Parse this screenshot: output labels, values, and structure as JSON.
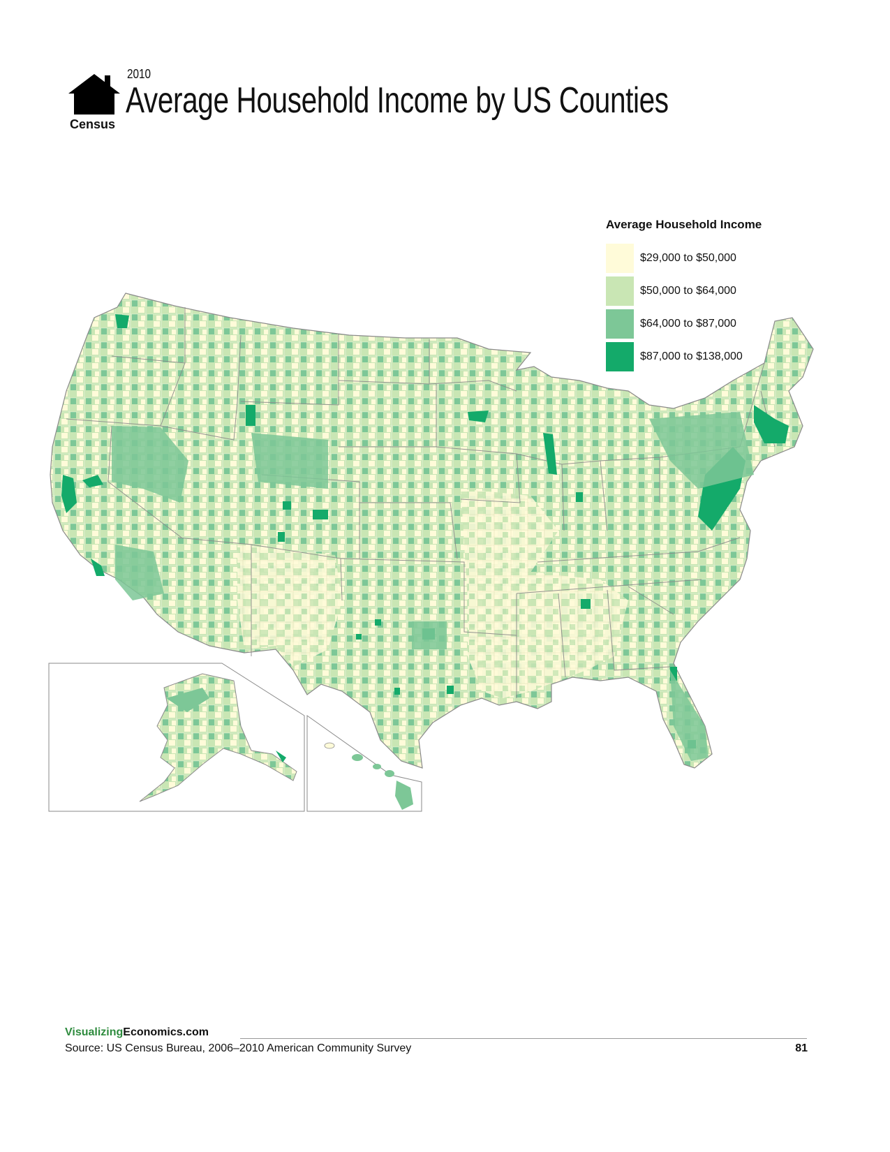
{
  "header": {
    "logo_text": "Census",
    "year": "2010",
    "title": "Average Household Income by US Counties"
  },
  "legend": {
    "title": "Average Household Income",
    "items": [
      {
        "label": "$29,000 to $50,000",
        "color": "#fffbd9"
      },
      {
        "label": "$50,000 to $64,000",
        "color": "#c9e6b4"
      },
      {
        "label": "$64,000 to $87,000",
        "color": "#7dc797"
      },
      {
        "label": "$87,000 to $138,000",
        "color": "#14aa6a"
      }
    ]
  },
  "map": {
    "border_color": "#8a8a8a",
    "insets": [
      "Alaska",
      "Hawaii"
    ]
  },
  "footer": {
    "site_prefix": "Visualizing",
    "site_suffix": "Economics.com",
    "source": "Source: US Census Bureau, 2006–2010 American Community Survey",
    "page_number": "81"
  }
}
